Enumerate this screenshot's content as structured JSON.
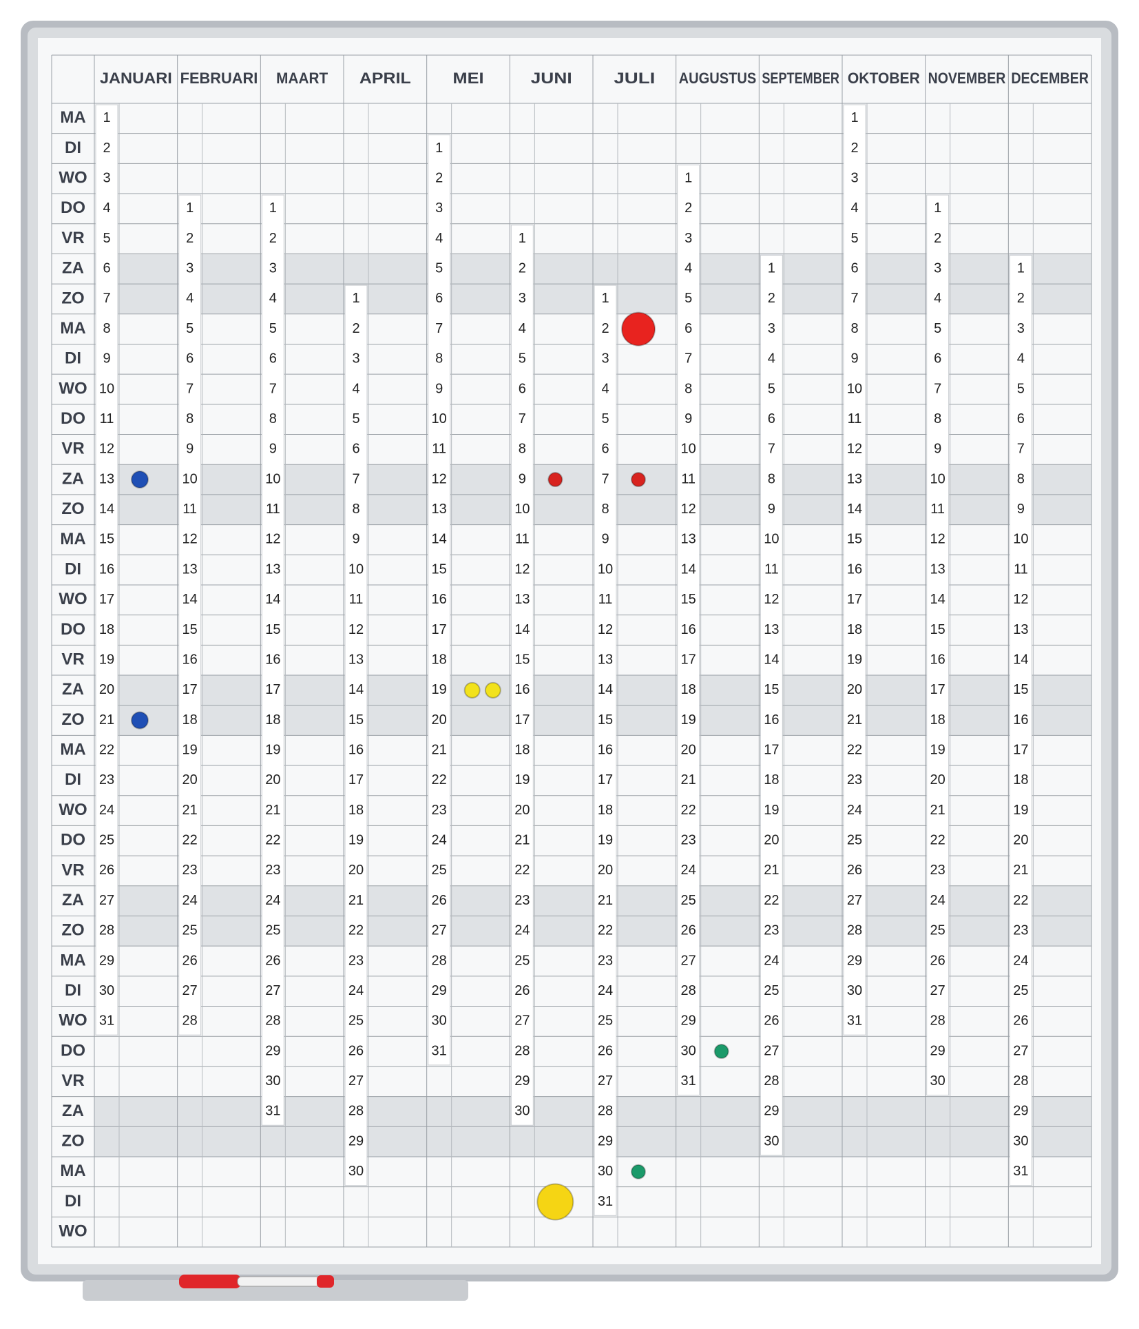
{
  "weekdays": [
    "MA",
    "DI",
    "WO",
    "DO",
    "VR",
    "ZA",
    "ZO",
    "MA",
    "DI",
    "WO",
    "DO",
    "VR",
    "ZA",
    "ZO",
    "MA",
    "DI",
    "WO",
    "DO",
    "VR",
    "ZA",
    "ZO",
    "MA",
    "DI",
    "WO",
    "DO",
    "VR",
    "ZA",
    "ZO",
    "MA",
    "DI",
    "WO",
    "DO",
    "VR",
    "ZA",
    "ZO",
    "MA",
    "DI",
    "WO"
  ],
  "months": [
    {
      "name": "JANUARI",
      "days": [
        1,
        2,
        3,
        4,
        5,
        6,
        7,
        8,
        9,
        10,
        11,
        12,
        13,
        14,
        15,
        16,
        17,
        18,
        19,
        20,
        21,
        22,
        23,
        24,
        25,
        26,
        27,
        28,
        29,
        30,
        31
      ]
    },
    {
      "name": "FEBRUARI",
      "days": [
        1,
        2,
        3,
        4,
        5,
        6,
        7,
        8,
        9,
        10,
        11,
        12,
        13,
        14,
        15,
        16,
        17,
        18,
        19,
        20,
        21,
        22,
        23,
        24,
        25,
        26,
        27,
        28
      ]
    },
    {
      "name": "MAART",
      "days": [
        1,
        2,
        3,
        4,
        5,
        6,
        7,
        8,
        9,
        10,
        11,
        12,
        13,
        14,
        15,
        16,
        17,
        18,
        19,
        20,
        21,
        22,
        23,
        24,
        25,
        26,
        27,
        28,
        29,
        30,
        31
      ]
    },
    {
      "name": "APRIL",
      "days": [
        1,
        2,
        3,
        4,
        5,
        6,
        7,
        8,
        9,
        10,
        11,
        12,
        13,
        14,
        15,
        16,
        17,
        18,
        19,
        20,
        21,
        22,
        23,
        24,
        25,
        26,
        27,
        28,
        29,
        30
      ]
    },
    {
      "name": "MEI",
      "days": [
        1,
        2,
        3,
        4,
        5,
        6,
        7,
        8,
        9,
        10,
        11,
        12,
        13,
        14,
        15,
        16,
        17,
        18,
        19,
        20,
        21,
        22,
        23,
        24,
        25,
        26,
        27,
        28,
        29,
        30,
        31
      ]
    },
    {
      "name": "JUNI",
      "days": [
        1,
        2,
        3,
        4,
        5,
        6,
        7,
        8,
        9,
        10,
        11,
        12,
        13,
        14,
        15,
        16,
        17,
        18,
        19,
        20,
        21,
        22,
        23,
        24,
        25,
        26,
        27,
        28,
        29,
        30
      ]
    },
    {
      "name": "JULI",
      "days": [
        1,
        2,
        3,
        4,
        5,
        6,
        7,
        8,
        9,
        10,
        11,
        12,
        13,
        14,
        15,
        16,
        17,
        18,
        19,
        20,
        21,
        22,
        23,
        24,
        25,
        26,
        27,
        28,
        29,
        30,
        31
      ]
    },
    {
      "name": "AUGUSTUS",
      "days": [
        1,
        2,
        3,
        4,
        5,
        6,
        7,
        8,
        9,
        10,
        11,
        12,
        13,
        14,
        15,
        16,
        17,
        18,
        19,
        20,
        21,
        22,
        23,
        24,
        25,
        26,
        27,
        28,
        29,
        30,
        31
      ]
    },
    {
      "name": "SEPTEMBER",
      "days": [
        1,
        2,
        3,
        4,
        5,
        6,
        7,
        8,
        9,
        10,
        11,
        12,
        13,
        14,
        15,
        16,
        17,
        18,
        19,
        20,
        21,
        22,
        23,
        24,
        25,
        26,
        27,
        28,
        29,
        30
      ]
    },
    {
      "name": "OKTOBER",
      "days": [
        1,
        2,
        3,
        4,
        5,
        6,
        7,
        8,
        9,
        10,
        11,
        12,
        13,
        14,
        15,
        16,
        17,
        18,
        19,
        20,
        21,
        22,
        23,
        24,
        25,
        26,
        27,
        28,
        29,
        30,
        31
      ]
    },
    {
      "name": "NOVEMBER",
      "days": [
        1,
        2,
        3,
        4,
        5,
        6,
        7,
        8,
        9,
        10,
        11,
        12,
        13,
        14,
        15,
        16,
        17,
        18,
        19,
        20,
        21,
        22,
        23,
        24,
        25,
        26,
        27,
        28,
        29,
        30
      ]
    },
    {
      "name": "DECEMBER",
      "days": [
        1,
        2,
        3,
        4,
        5,
        6,
        7,
        8,
        9,
        10,
        11,
        12,
        13,
        14,
        15,
        16,
        17,
        18,
        19,
        20,
        21,
        22,
        23,
        24,
        25,
        26,
        27,
        28,
        29,
        30,
        31
      ]
    }
  ]
}
